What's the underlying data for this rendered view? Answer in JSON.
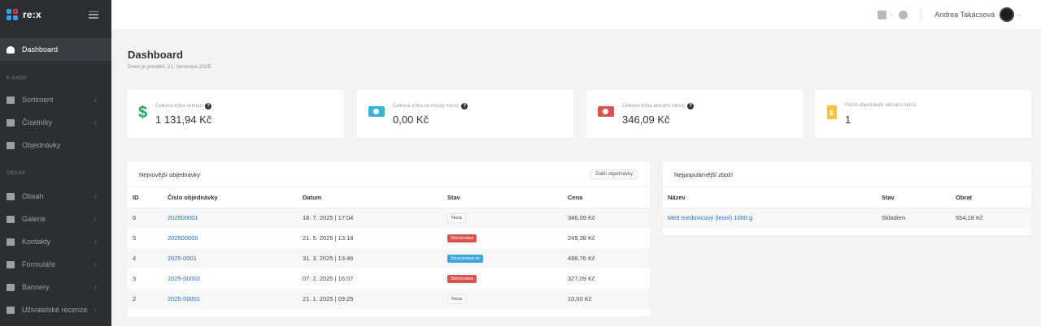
{
  "brand": {
    "name": "re:x"
  },
  "sidebar": {
    "dashboard": "Dashboard",
    "section_eshop": "E-SHOP",
    "sortiment": "Sortiment",
    "ciselniky": "Číselníky",
    "objednavky": "Objednávky",
    "section_obsah": "OBSAH",
    "obsah": "Obsah",
    "galerie": "Galerie",
    "kontakty": "Kontakty",
    "formulare": "Formuláře",
    "bannery": "Bannery",
    "recenze": "Uživatelské recenze"
  },
  "topbar": {
    "user": "Andrea Takácsová"
  },
  "page": {
    "title": "Dashboard",
    "subtitle": "Dnes je pondělí, 21. července 2025"
  },
  "stats": [
    {
      "label": "Celková tržba eshopu",
      "value": "1 131,94 Kč"
    },
    {
      "label": "Celková tržba za minulý měsíc",
      "value": "0,00 Kč"
    },
    {
      "label": "Celková tržba aktuální měsíc",
      "value": "346,09 Kč"
    },
    {
      "label": "Počet objednávek aktuální měsíc",
      "value": "1"
    }
  ],
  "orders": {
    "title": "Nejnovější objednávky",
    "more_button": "Další objednávky",
    "columns": [
      "ID",
      "Číslo objednávky",
      "Datum",
      "Stav",
      "Cena"
    ],
    "rows": [
      {
        "id": "6",
        "number": "202500001",
        "date": "18. 7. 2025 | 17:04",
        "status": "Nová",
        "price": "346,09 Kč"
      },
      {
        "id": "5",
        "number": "202500000",
        "date": "21. 5. 2025 | 13:18",
        "status": "Stornováno",
        "price": "249,38 Kč"
      },
      {
        "id": "4",
        "number": "2025-0001",
        "date": "31. 3. 2025 | 13:46",
        "status": "Zpracovává se",
        "price": "498,76 Kč"
      },
      {
        "id": "3",
        "number": "2025-00002",
        "date": "07. 2. 2025 | 16:07",
        "status": "Stornováno",
        "price": "327,09 Kč"
      },
      {
        "id": "2",
        "number": "2025-00001",
        "date": "21. 1. 2025 | 09:25",
        "status": "Nová",
        "price": "10,00 Kč"
      }
    ]
  },
  "popular": {
    "title": "Nejpopulárnější zboží",
    "columns": [
      "Název",
      "Stav",
      "Obrat"
    ],
    "rows": [
      {
        "name": "Med medovicový (lesní) 1000 g",
        "status": "Skladem",
        "turnover": "554,18 Kč"
      }
    ]
  }
}
